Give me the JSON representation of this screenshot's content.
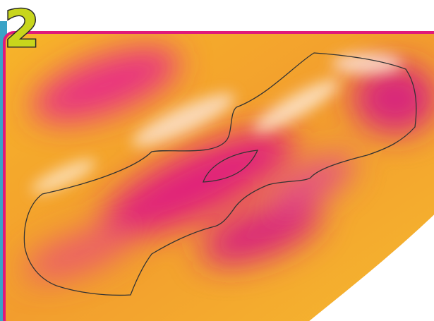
{
  "step": {
    "number": "2"
  }
}
